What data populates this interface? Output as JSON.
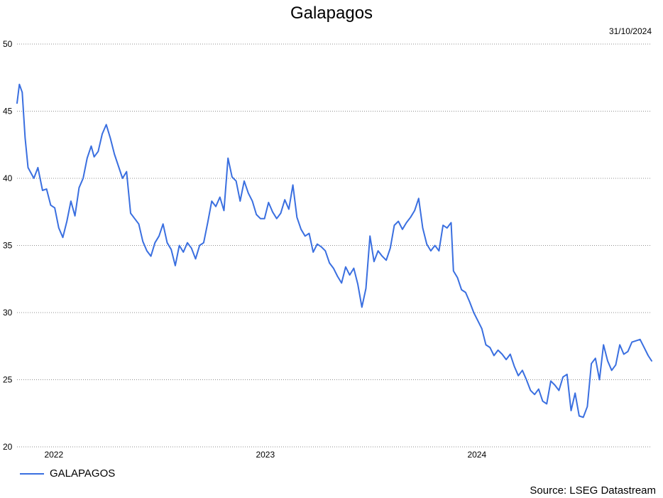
{
  "title": "Galapagos",
  "as_of_date": "31/10/2024",
  "source": "Source: LSEG Datastream",
  "legend": {
    "label": "GALAPAGOS",
    "color": "#3a6fe0"
  },
  "chart_data": {
    "type": "line",
    "title": "Galapagos",
    "xlabel": "",
    "ylabel": "",
    "ylim": [
      20,
      50
    ],
    "xlim": [
      "2021-11-01",
      "2024-10-31"
    ],
    "yticks": [
      20,
      25,
      30,
      35,
      40,
      45,
      50
    ],
    "xticks": [
      {
        "date": "2022-01-01",
        "label": "2022"
      },
      {
        "date": "2023-01-01",
        "label": "2023"
      },
      {
        "date": "2024-01-01",
        "label": "2024"
      }
    ],
    "grid": true,
    "legend_position": "bottom-left",
    "series": [
      {
        "name": "GALAPAGOS",
        "color": "#3a6fe0",
        "points": [
          [
            "2021-11-01",
            45.6
          ],
          [
            "2021-11-05",
            47.0
          ],
          [
            "2021-11-10",
            46.4
          ],
          [
            "2021-11-15",
            43.0
          ],
          [
            "2021-11-20",
            40.8
          ],
          [
            "2021-11-30",
            40.0
          ],
          [
            "2021-12-07",
            40.8
          ],
          [
            "2021-12-15",
            39.1
          ],
          [
            "2021-12-22",
            39.2
          ],
          [
            "2021-12-29",
            38.0
          ],
          [
            "2022-01-05",
            37.8
          ],
          [
            "2022-01-12",
            36.3
          ],
          [
            "2022-01-19",
            35.6
          ],
          [
            "2022-01-26",
            36.8
          ],
          [
            "2022-02-02",
            38.3
          ],
          [
            "2022-02-09",
            37.2
          ],
          [
            "2022-02-16",
            39.3
          ],
          [
            "2022-02-23",
            40.0
          ],
          [
            "2022-03-02",
            41.5
          ],
          [
            "2022-03-09",
            42.4
          ],
          [
            "2022-03-14",
            41.6
          ],
          [
            "2022-03-21",
            42.0
          ],
          [
            "2022-03-28",
            43.3
          ],
          [
            "2022-04-04",
            44.0
          ],
          [
            "2022-04-11",
            43.0
          ],
          [
            "2022-04-18",
            41.8
          ],
          [
            "2022-04-25",
            40.9
          ],
          [
            "2022-05-02",
            40.0
          ],
          [
            "2022-05-09",
            40.5
          ],
          [
            "2022-05-16",
            37.4
          ],
          [
            "2022-05-23",
            37.0
          ],
          [
            "2022-05-30",
            36.6
          ],
          [
            "2022-06-06",
            35.3
          ],
          [
            "2022-06-13",
            34.6
          ],
          [
            "2022-06-20",
            34.2
          ],
          [
            "2022-06-27",
            35.2
          ],
          [
            "2022-07-04",
            35.7
          ],
          [
            "2022-07-11",
            36.6
          ],
          [
            "2022-07-18",
            35.2
          ],
          [
            "2022-07-25",
            34.7
          ],
          [
            "2022-08-01",
            33.5
          ],
          [
            "2022-08-08",
            35.0
          ],
          [
            "2022-08-15",
            34.5
          ],
          [
            "2022-08-22",
            35.2
          ],
          [
            "2022-08-29",
            34.8
          ],
          [
            "2022-09-05",
            34.0
          ],
          [
            "2022-09-12",
            35.0
          ],
          [
            "2022-09-19",
            35.2
          ],
          [
            "2022-09-26",
            36.7
          ],
          [
            "2022-10-03",
            38.3
          ],
          [
            "2022-10-10",
            37.9
          ],
          [
            "2022-10-17",
            38.6
          ],
          [
            "2022-10-24",
            37.6
          ],
          [
            "2022-10-31",
            41.5
          ],
          [
            "2022-11-07",
            40.1
          ],
          [
            "2022-11-14",
            39.8
          ],
          [
            "2022-11-21",
            38.3
          ],
          [
            "2022-11-28",
            39.8
          ],
          [
            "2022-12-05",
            38.9
          ],
          [
            "2022-12-12",
            38.3
          ],
          [
            "2022-12-19",
            37.3
          ],
          [
            "2022-12-26",
            37.0
          ],
          [
            "2023-01-02",
            37.0
          ],
          [
            "2023-01-09",
            38.2
          ],
          [
            "2023-01-16",
            37.5
          ],
          [
            "2023-01-23",
            37.0
          ],
          [
            "2023-01-30",
            37.4
          ],
          [
            "2023-02-06",
            38.4
          ],
          [
            "2023-02-13",
            37.7
          ],
          [
            "2023-02-20",
            39.5
          ],
          [
            "2023-02-27",
            37.1
          ],
          [
            "2023-03-06",
            36.2
          ],
          [
            "2023-03-13",
            35.7
          ],
          [
            "2023-03-20",
            35.9
          ],
          [
            "2023-03-27",
            34.5
          ],
          [
            "2023-04-03",
            35.1
          ],
          [
            "2023-04-10",
            34.9
          ],
          [
            "2023-04-17",
            34.6
          ],
          [
            "2023-04-24",
            33.7
          ],
          [
            "2023-05-01",
            33.3
          ],
          [
            "2023-05-08",
            32.7
          ],
          [
            "2023-05-15",
            32.2
          ],
          [
            "2023-05-22",
            33.4
          ],
          [
            "2023-05-29",
            32.8
          ],
          [
            "2023-06-05",
            33.3
          ],
          [
            "2023-06-12",
            32.1
          ],
          [
            "2023-06-19",
            30.4
          ],
          [
            "2023-06-26",
            31.8
          ],
          [
            "2023-07-03",
            35.7
          ],
          [
            "2023-07-10",
            33.8
          ],
          [
            "2023-07-17",
            34.6
          ],
          [
            "2023-07-24",
            34.2
          ],
          [
            "2023-07-31",
            33.9
          ],
          [
            "2023-08-07",
            34.8
          ],
          [
            "2023-08-14",
            36.5
          ],
          [
            "2023-08-21",
            36.8
          ],
          [
            "2023-08-28",
            36.2
          ],
          [
            "2023-09-04",
            36.7
          ],
          [
            "2023-09-11",
            37.1
          ],
          [
            "2023-09-18",
            37.6
          ],
          [
            "2023-09-25",
            38.5
          ],
          [
            "2023-10-02",
            36.3
          ],
          [
            "2023-10-09",
            35.1
          ],
          [
            "2023-10-16",
            34.6
          ],
          [
            "2023-10-23",
            35.0
          ],
          [
            "2023-10-30",
            34.6
          ],
          [
            "2023-11-06",
            36.5
          ],
          [
            "2023-11-13",
            36.3
          ],
          [
            "2023-11-20",
            36.7
          ],
          [
            "2023-11-24",
            33.1
          ],
          [
            "2023-12-01",
            32.6
          ],
          [
            "2023-12-08",
            31.7
          ],
          [
            "2023-12-15",
            31.5
          ],
          [
            "2023-12-22",
            30.8
          ],
          [
            "2023-12-29",
            30.0
          ],
          [
            "2024-01-05",
            29.4
          ],
          [
            "2024-01-12",
            28.8
          ],
          [
            "2024-01-19",
            27.6
          ],
          [
            "2024-01-26",
            27.4
          ],
          [
            "2024-02-02",
            26.8
          ],
          [
            "2024-02-09",
            27.2
          ],
          [
            "2024-02-16",
            26.9
          ],
          [
            "2024-02-23",
            26.5
          ],
          [
            "2024-03-01",
            26.9
          ],
          [
            "2024-03-08",
            26.0
          ],
          [
            "2024-03-15",
            25.3
          ],
          [
            "2024-03-22",
            25.7
          ],
          [
            "2024-03-29",
            25.0
          ],
          [
            "2024-04-05",
            24.2
          ],
          [
            "2024-04-12",
            23.9
          ],
          [
            "2024-04-19",
            24.3
          ],
          [
            "2024-04-26",
            23.4
          ],
          [
            "2024-05-03",
            23.2
          ],
          [
            "2024-05-10",
            24.9
          ],
          [
            "2024-05-17",
            24.6
          ],
          [
            "2024-05-24",
            24.2
          ],
          [
            "2024-05-31",
            25.2
          ],
          [
            "2024-06-07",
            25.4
          ],
          [
            "2024-06-14",
            22.7
          ],
          [
            "2024-06-21",
            24.0
          ],
          [
            "2024-06-28",
            22.3
          ],
          [
            "2024-07-05",
            22.2
          ],
          [
            "2024-07-12",
            23.0
          ],
          [
            "2024-07-19",
            26.2
          ],
          [
            "2024-07-26",
            26.6
          ],
          [
            "2024-08-02",
            25.0
          ],
          [
            "2024-08-09",
            27.6
          ],
          [
            "2024-08-16",
            26.4
          ],
          [
            "2024-08-23",
            25.7
          ],
          [
            "2024-08-30",
            26.1
          ],
          [
            "2024-09-06",
            27.6
          ],
          [
            "2024-09-13",
            26.9
          ],
          [
            "2024-09-20",
            27.1
          ],
          [
            "2024-09-27",
            27.8
          ],
          [
            "2024-10-04",
            27.9
          ],
          [
            "2024-10-11",
            28.0
          ],
          [
            "2024-10-18",
            27.4
          ],
          [
            "2024-10-25",
            26.8
          ],
          [
            "2024-10-31",
            26.4
          ]
        ]
      }
    ]
  }
}
